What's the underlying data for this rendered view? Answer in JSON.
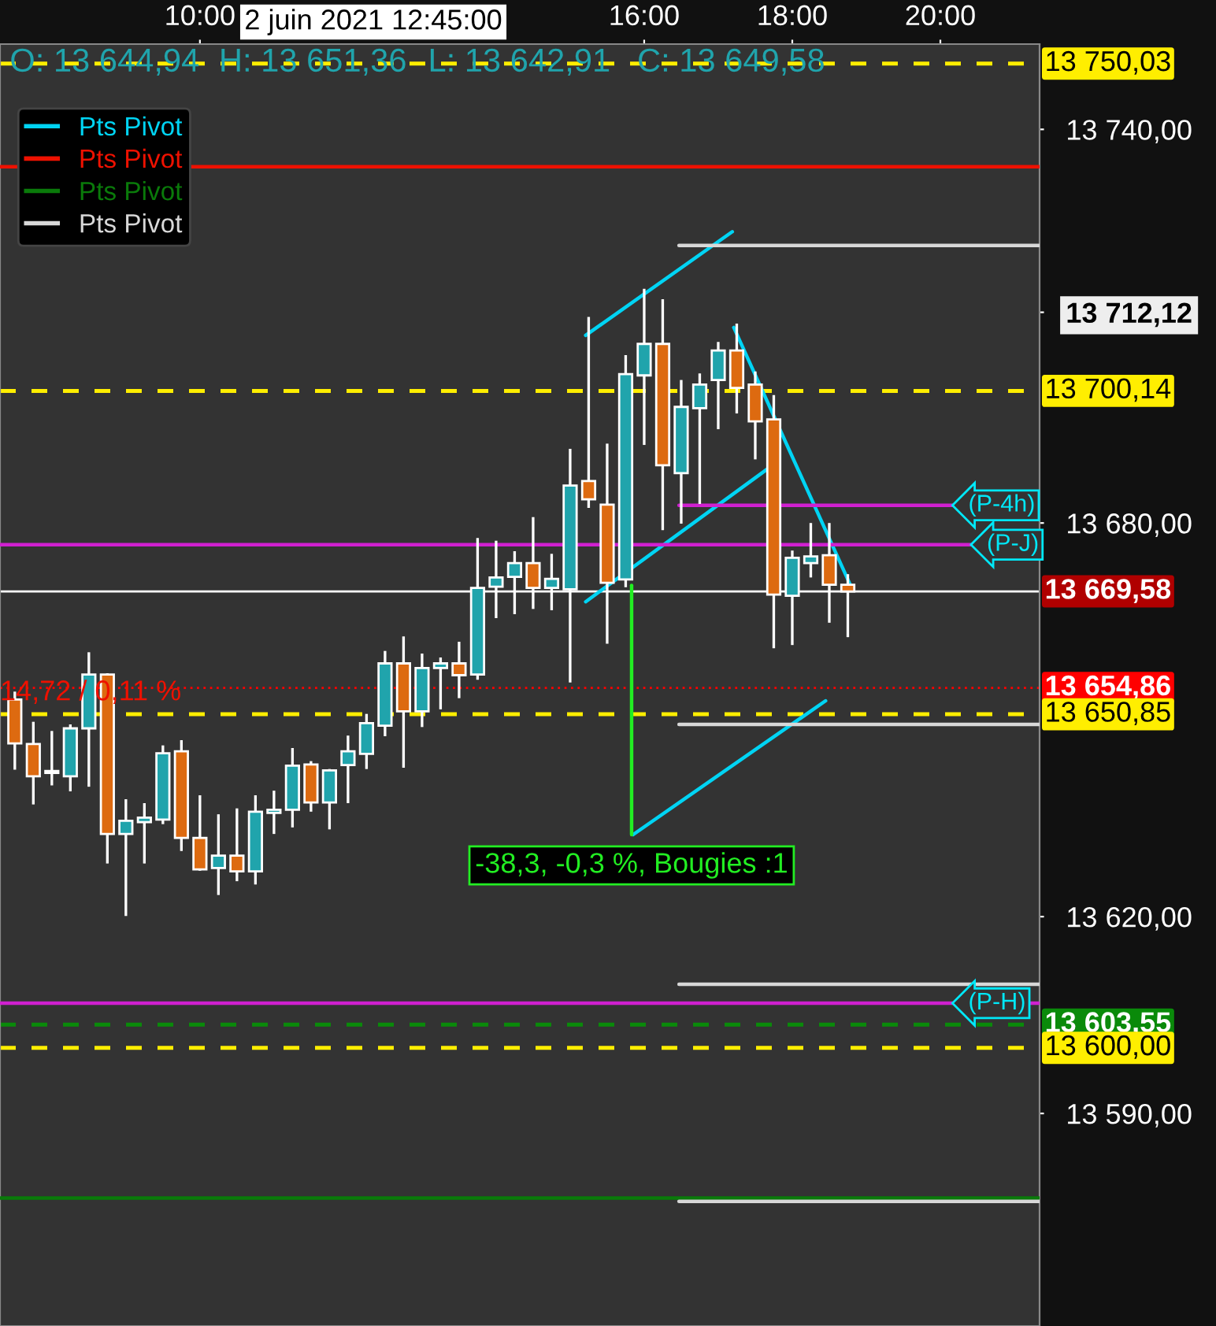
{
  "chart_data": {
    "type": "candlestick",
    "xlim": [
      7.3,
      21.34
    ],
    "ylim": [
      13557.6,
      13753.0
    ],
    "xticks": [
      {
        "value": 10,
        "label": "10:00"
      },
      {
        "value": 16,
        "label": "16:00"
      },
      {
        "value": 18,
        "label": "18:00"
      },
      {
        "value": 20,
        "label": "20:00"
      }
    ],
    "yticks": [
      {
        "value": 13740,
        "label": "13 740,00"
      },
      {
        "value": 13712.12,
        "label": "13 712,12"
      },
      {
        "value": 13680,
        "label": "13 680,00"
      },
      {
        "value": 13620,
        "label": "13 620,00"
      },
      {
        "value": 13590,
        "label": "13 590,00"
      }
    ],
    "grid": false,
    "legend": "top left",
    "series": [
      {
        "x": [
          7.5,
          7.75,
          8.0,
          8.25,
          8.5,
          8.75,
          9.0,
          9.25,
          9.5,
          9.75,
          10.0,
          10.25,
          10.5,
          10.75,
          11.0,
          11.25,
          11.5,
          11.75,
          12.0,
          12.25,
          12.5,
          12.75,
          13.0,
          13.25,
          13.5,
          13.75,
          14.0,
          14.25,
          14.5,
          14.75,
          15.0,
          15.25,
          15.5,
          15.75,
          16.0,
          16.25,
          16.5,
          16.75,
          17.0,
          17.25,
          17.5,
          17.75,
          18.0,
          18.25,
          18.5,
          18.75
        ],
        "ohlc": [
          [
            13653.1,
            13654.1,
            13642.6,
            13646.4
          ],
          [
            13646.3,
            13649.5,
            13637.3,
            13641.4
          ],
          [
            13641.9,
            13648.1,
            13640.2,
            13641.9
          ],
          [
            13641.4,
            13649.1,
            13639.3,
            13648.7
          ],
          [
            13648.7,
            13660.1,
            13640.0,
            13656.9
          ],
          [
            13656.9,
            13656.9,
            13628.3,
            13632.6
          ],
          [
            13632.6,
            13637.7,
            13620.3,
            13634.6
          ],
          [
            13634.4,
            13637.1,
            13628.3,
            13635.1
          ],
          [
            13634.8,
            13645.9,
            13634.3,
            13644.9
          ],
          [
            13645.2,
            13646.7,
            13630.2,
            13632.0
          ],
          [
            13632.0,
            13638.3,
            13627.2,
            13627.2
          ],
          [
            13627.4,
            13635.4,
            13623.5,
            13629.3
          ],
          [
            13629.3,
            13636.3,
            13625.6,
            13626.9
          ],
          [
            13626.9,
            13638.3,
            13625.1,
            13636.0
          ],
          [
            13635.8,
            13639.0,
            13632.8,
            13636.3
          ],
          [
            13636.3,
            13645.5,
            13633.8,
            13643.0
          ],
          [
            13643.2,
            13643.5,
            13636.2,
            13637.4
          ],
          [
            13637.4,
            13642.3,
            13633.5,
            13642.3
          ],
          [
            13643.1,
            13647.4,
            13637.5,
            13645.2
          ],
          [
            13644.8,
            13650.7,
            13642.7,
            13649.5
          ],
          [
            13649.1,
            13660.3,
            13647.7,
            13658.6
          ],
          [
            13658.6,
            13662.5,
            13642.9,
            13651.3
          ],
          [
            13651.3,
            13659.9,
            13649.1,
            13657.9
          ],
          [
            13657.9,
            13659.3,
            13651.8,
            13658.6
          ],
          [
            13658.6,
            13661.7,
            13653.5,
            13656.8
          ],
          [
            13656.9,
            13677.5,
            13656.3,
            13670.1
          ],
          [
            13670.3,
            13677.1,
            13665.7,
            13671.7
          ],
          [
            13671.8,
            13675.5,
            13666.3,
            13673.9
          ],
          [
            13673.9,
            13680.7,
            13667.1,
            13670.1
          ],
          [
            13670.1,
            13675.1,
            13666.9,
            13671.5
          ],
          [
            13669.9,
            13691.1,
            13655.9,
            13685.7
          ],
          [
            13686.4,
            13711.2,
            13682.5,
            13683.6
          ],
          [
            13682.8,
            13691.9,
            13661.8,
            13670.9
          ],
          [
            13671.4,
            13705.4,
            13670.4,
            13702.7
          ],
          [
            13702.5,
            13715.5,
            13692.1,
            13707.3
          ],
          [
            13707.3,
            13713.9,
            13679.1,
            13688.8
          ],
          [
            13687.6,
            13701.6,
            13680.1,
            13697.7
          ],
          [
            13697.5,
            13702.6,
            13683.1,
            13701.1
          ],
          [
            13701.8,
            13707.4,
            13694.5,
            13706.3
          ],
          [
            13706.3,
            13710.2,
            13696.9,
            13700.6
          ],
          [
            13701.1,
            13702.9,
            13689.9,
            13695.5
          ],
          [
            13695.8,
            13699.3,
            13661.1,
            13669.1
          ],
          [
            13668.9,
            13675.6,
            13661.6,
            13674.7
          ],
          [
            13673.9,
            13679.8,
            13671.9,
            13674.9
          ],
          [
            13675.1,
            13679.8,
            13665.0,
            13670.6
          ],
          [
            13670.6,
            13672.0,
            13662.8,
            13669.58
          ]
        ],
        "colors": [
          "#dd6a10",
          "#dd6a10",
          "#ffffff",
          "#20a4ac",
          "#20a4ac",
          "#dd6a10",
          "#20a4ac",
          "#20a4ac",
          "#20a4ac",
          "#dd6a10",
          "#dd6a10",
          "#20a4ac",
          "#dd6a10",
          "#20a4ac",
          "#20a4ac",
          "#20a4ac",
          "#dd6a10",
          "#20a4ac",
          "#20a4ac",
          "#20a4ac",
          "#20a4ac",
          "#dd6a10",
          "#20a4ac",
          "#20a4ac",
          "#dd6a10",
          "#20a4ac",
          "#20a4ac",
          "#20a4ac",
          "#dd6a10",
          "#20a4ac",
          "#20a4ac",
          "#dd6a10",
          "#dd6a10",
          "#20a4ac",
          "#20a4ac",
          "#dd6a10",
          "#20a4ac",
          "#20a4ac",
          "#20a4ac",
          "#dd6a10",
          "#dd6a10",
          "#dd6a10",
          "#20a4ac",
          "#20a4ac",
          "#dd6a10",
          "#dd6a10"
        ]
      },
      {
        "type": "line",
        "name": "Pts Pivot",
        "color": "#00d4f4",
        "x": [
          15.21,
          17.19
        ],
        "values": [
          13708.6,
          13724.4
        ]
      },
      {
        "type": "line",
        "color": "#00d4f4",
        "x": [
          17.21,
          18.79
        ],
        "values": [
          13709.8,
          13670.4
        ]
      },
      {
        "type": "line",
        "color": "#00d4f4",
        "x": [
          15.21,
          17.66
        ],
        "values": [
          13668.0,
          13688.2
        ]
      },
      {
        "type": "line",
        "color": "#00d4f4",
        "x": [
          15.85,
          18.45
        ],
        "values": [
          13632.5,
          13652.9
        ]
      },
      {
        "type": "line",
        "name": "Pts Pivot",
        "color": "#ee1100",
        "x": [
          7.3,
          21.34
        ],
        "values": [
          13734.3,
          13734.3
        ]
      },
      {
        "type": "line",
        "name": "Pts Pivot",
        "color": "#0a7a0a",
        "x": [
          7.3,
          21.34
        ],
        "values": [
          13577.1,
          13577.1
        ]
      },
      {
        "type": "line",
        "name": "Pts Pivot",
        "color": "#d8d8d8",
        "x": [
          16.47,
          21.34
        ],
        "values": [
          13722.3,
          13722.3
        ]
      },
      {
        "type": "line",
        "color": "#d8d8d8",
        "x": [
          16.47,
          21.34
        ],
        "values": [
          13649.3,
          13649.3
        ]
      },
      {
        "type": "line",
        "color": "#d8d8d8",
        "x": [
          16.47,
          21.34
        ],
        "values": [
          13609.7,
          13609.7
        ]
      },
      {
        "type": "line",
        "color": "#d8d8d8",
        "x": [
          16.47,
          21.34
        ],
        "values": [
          13576.6,
          13576.6
        ]
      },
      {
        "type": "line",
        "color": "#d020d0",
        "x": [
          16.47,
          20.2
        ],
        "values": [
          13682.7,
          13682.7
        ]
      },
      {
        "type": "line",
        "color": "#d020d0",
        "x": [
          7.3,
          20.45
        ],
        "values": [
          13676.7,
          13676.7
        ]
      },
      {
        "type": "line",
        "color": "#d020d0",
        "x": [
          7.3,
          21.34
        ],
        "values": [
          13606.8,
          13606.8
        ]
      },
      {
        "type": "line",
        "color": "#22ee22",
        "x": [
          15.83,
          15.83
        ],
        "values": [
          13670.5,
          13632.5
        ]
      }
    ],
    "ref_lines": [
      {
        "axis": "y",
        "value": 13750.03,
        "label": "13 750,03",
        "color": "#ffee00",
        "line_style": "dashed"
      },
      {
        "axis": "y",
        "value": 13700.14,
        "label": "13 700,14",
        "color": "#ffee00",
        "line_style": "dashed"
      },
      {
        "axis": "y",
        "value": 13669.58,
        "label": "13 669,58",
        "color": "#ffffff",
        "line_style": "solid"
      },
      {
        "axis": "y",
        "value": 13654.86,
        "label": "13 654,86",
        "color": "#ff0000",
        "line_style": "dotted"
      },
      {
        "axis": "y",
        "value": 13650.85,
        "label": "13 650,85",
        "color": "#ffee00",
        "line_style": "dashed"
      },
      {
        "axis": "y",
        "value": 13603.55,
        "label": "13 603,55",
        "color": "#0a8a0a",
        "line_style": "dashed"
      },
      {
        "axis": "y",
        "value": 13600.0,
        "label": "13 600,00",
        "color": "#ffee00",
        "line_style": "dashed"
      }
    ],
    "annotations": [
      "O: 13 644,94",
      "H: 13 651,36",
      "L: 13 642,91",
      "C: 13 649,58",
      "2 juin 2021 12:45:00",
      "14,72 / 0,11 %",
      {
        "text": "-38,3, -0,3 %, Bougies :1",
        "x": 15.83,
        "y": 13632.5
      },
      {
        "text": "(P-4h)",
        "x": 20.2,
        "y": 13682.7
      },
      {
        "text": "(P-J)",
        "x": 20.45,
        "y": 13676.7
      },
      {
        "text": "(P-H)",
        "x": 20.2,
        "y": 13606.8
      }
    ]
  }
}
